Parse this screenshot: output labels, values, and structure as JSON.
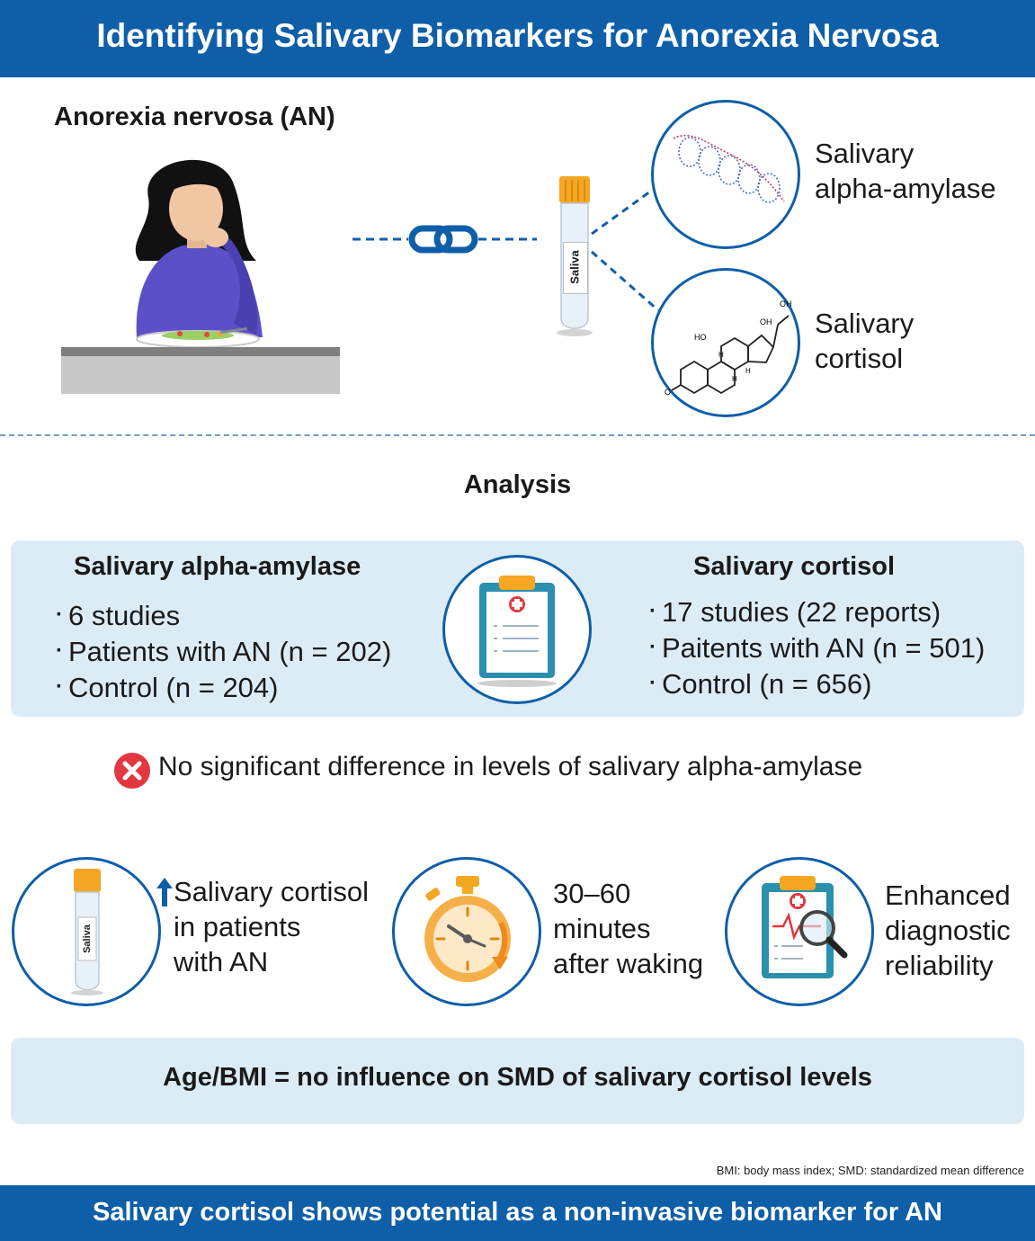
{
  "header": {
    "title": "Identifying Salivary Biomarkers for Anorexia Nervosa"
  },
  "top": {
    "condition_label": "Anorexia nervosa (AN)",
    "tube_label": "Saliva",
    "marker1_label_line1": "Salivary",
    "marker1_label_line2": "alpha-amylase",
    "marker2_label_line1": "Salivary",
    "marker2_label_line2": "cortisol",
    "molecule_labels": [
      "HO",
      "OH",
      "OH",
      "O",
      "H",
      "H",
      "H"
    ]
  },
  "analysis": {
    "title": "Analysis",
    "left": {
      "title": "Salivary alpha-amylase",
      "bullets": [
        "6 studies",
        "Patients with AN (n = 202)",
        "Control (n = 204)"
      ]
    },
    "right": {
      "title": "Salivary cortisol",
      "bullets": [
        "17 studies (22 reports)",
        "Paitents with AN (n = 501)",
        "Control (n = 656)"
      ]
    }
  },
  "finding": {
    "text": "No significant difference in levels of salivary alpha-amylase"
  },
  "results": {
    "tube_label": "Saliva",
    "item1": [
      "Salivary cortisol",
      "in patients",
      "with AN"
    ],
    "item2": [
      "30–60",
      "minutes",
      "after waking"
    ],
    "item3": [
      "Enhanced",
      "diagnostic",
      "reliability"
    ]
  },
  "conclusion_box": {
    "text": "Age/BMI = no influence on SMD of salivary cortisol levels"
  },
  "footnote": {
    "text": "BMI: body mass index; SMD: standardized mean difference"
  },
  "footer": {
    "text": "Salivary cortisol shows potential as a non-invasive biomarker for AN"
  },
  "colors": {
    "brand_blue": "#0f5ea8",
    "light_blue": "#dcecf7",
    "orange": "#f5a623",
    "red": "#e2373f"
  }
}
